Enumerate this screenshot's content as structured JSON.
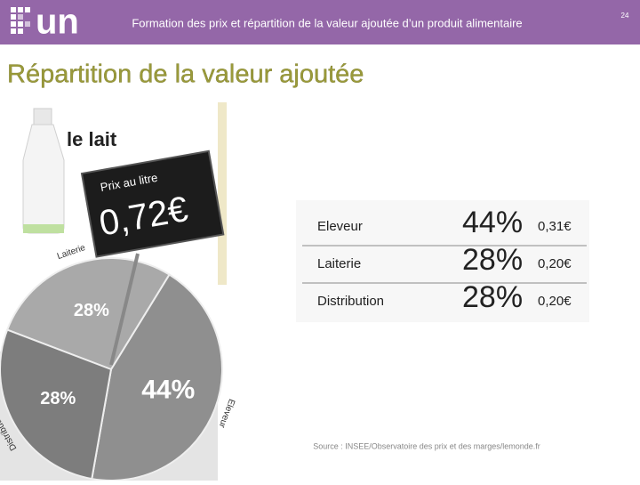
{
  "header": {
    "title": "Formation des prix et répartition de la valeur ajoutée d’un produit alimentaire",
    "page": "24"
  },
  "title": "Répartition de la valeur ajoutée",
  "product": "le lait",
  "price_tag": {
    "label": "Prix au litre",
    "price": "0,72€"
  },
  "chart_data": {
    "type": "pie",
    "categories": [
      "Eleveur",
      "Laiterie",
      "Distribution"
    ],
    "values": [
      44,
      28,
      28
    ],
    "value_labels": [
      "44%",
      "28%",
      "28%"
    ],
    "colors": [
      "#8f8f8f",
      "#a9a9a9",
      "#7d7d7d"
    ]
  },
  "table": {
    "rows": [
      [
        "Eleveur",
        "44%",
        "0,31€"
      ],
      [
        "Laiterie",
        "28%",
        "0,20€"
      ],
      [
        "Distribution",
        "28%",
        "0,20€"
      ]
    ]
  },
  "source": "Source : INSEE/Observatoire des prix et des marges/lemonde.fr"
}
